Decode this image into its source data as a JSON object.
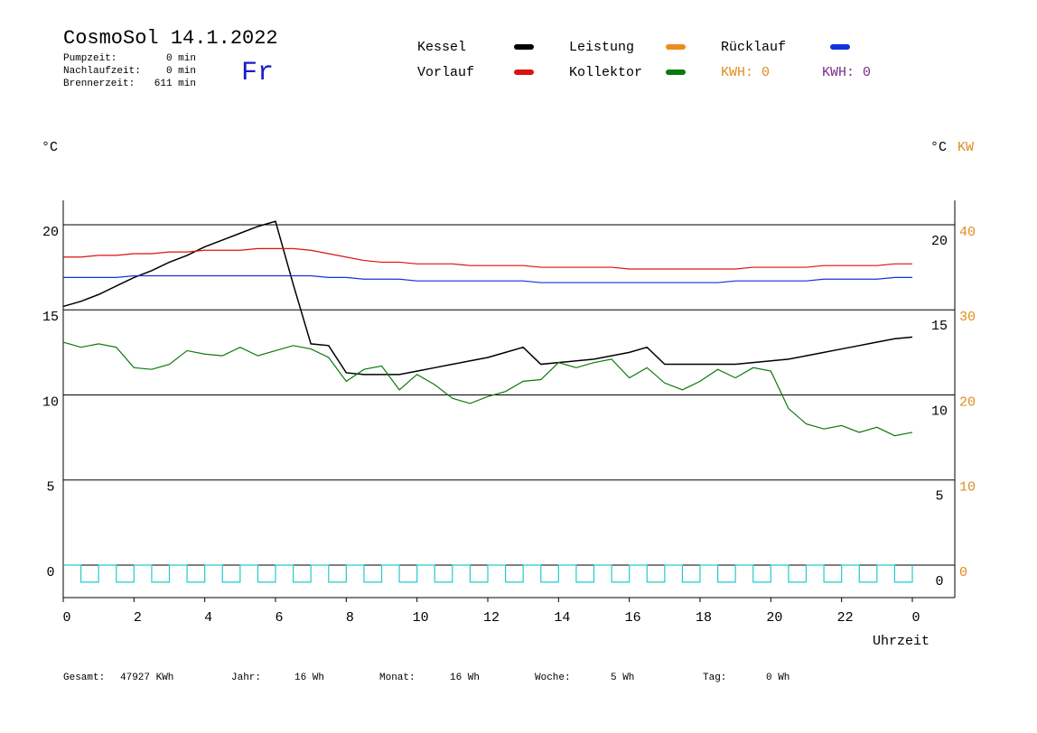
{
  "header": {
    "title": "CosmoSol 14.1.2022",
    "weekday": "Fr",
    "info": [
      [
        "Pumpzeit:",
        "0 min"
      ],
      [
        "Nachlaufzeit:",
        "0 min"
      ],
      [
        "Brennerzeit:",
        "611 min"
      ]
    ],
    "kwh": [
      {
        "text": "KWH: 0",
        "color": "#e08a1e"
      },
      {
        "text": "KWH: 0",
        "color": "#7a2a8a"
      }
    ]
  },
  "chart_data": {
    "type": "line",
    "y_unit_left": "°C",
    "y_unit_right": "°C",
    "y2_unit": "KW",
    "xlabel": "Uhrzeit",
    "x": [
      0,
      0.5,
      1,
      1.5,
      2,
      2.5,
      3,
      3.5,
      4,
      4.5,
      5,
      5.5,
      6,
      6.5,
      7,
      7.5,
      8,
      8.5,
      9,
      9.5,
      10,
      10.5,
      11,
      11.5,
      12,
      12.5,
      13,
      13.5,
      14,
      14.5,
      15,
      15.5,
      16,
      16.5,
      17,
      17.5,
      18,
      18.5,
      19,
      19.5,
      20,
      20.5,
      21,
      21.5,
      22,
      22.5,
      23,
      23.5,
      24
    ],
    "xlim": [
      0,
      25.2
    ],
    "xticks": [
      0,
      2,
      4,
      6,
      8,
      10,
      12,
      14,
      16,
      18,
      20,
      22,
      {
        "value": 24,
        "label": "0"
      }
    ],
    "ylim": [
      -1.91,
      21.43
    ],
    "yticks": [
      0,
      5,
      10,
      15,
      20
    ],
    "y2lim": [
      -3.82,
      42.86
    ],
    "y2ticks": [
      0,
      10,
      20,
      30,
      40
    ],
    "y2color": "#e08a1e",
    "grid": true,
    "series": [
      {
        "name": "Kessel",
        "color": "#000000",
        "values": [
          15.2,
          15.5,
          15.9,
          16.4,
          16.9,
          17.3,
          17.8,
          18.2,
          18.7,
          19.1,
          19.5,
          19.9,
          20.2,
          16.5,
          13.0,
          12.9,
          11.3,
          11.2,
          11.2,
          11.2,
          11.4,
          11.6,
          11.8,
          12.0,
          12.2,
          12.5,
          12.8,
          11.8,
          11.9,
          12.0,
          12.1,
          12.3,
          12.5,
          12.8,
          11.8,
          11.8,
          11.8,
          11.8,
          11.8,
          11.9,
          12.0,
          12.1,
          12.3,
          12.5,
          12.7,
          12.9,
          13.1,
          13.3,
          13.4
        ]
      },
      {
        "name": "Kollektor",
        "color": "#0a7a0a",
        "values": [
          13.1,
          12.8,
          13.0,
          12.8,
          11.6,
          11.5,
          11.8,
          12.6,
          12.4,
          12.3,
          12.8,
          12.3,
          12.6,
          12.9,
          12.7,
          12.2,
          10.8,
          11.5,
          11.7,
          10.3,
          11.2,
          10.6,
          9.8,
          9.5,
          9.9,
          10.2,
          10.8,
          10.9,
          11.9,
          11.6,
          11.9,
          12.1,
          11.0,
          11.6,
          10.7,
          10.3,
          10.8,
          11.5,
          11.0,
          11.6,
          11.4,
          9.2,
          8.3,
          8.0,
          8.2,
          7.8,
          8.1,
          7.6,
          7.8
        ]
      },
      {
        "name": "Vorlauf",
        "color": "#dd1111",
        "values": [
          18.1,
          18.1,
          18.2,
          18.2,
          18.3,
          18.3,
          18.4,
          18.4,
          18.5,
          18.5,
          18.5,
          18.6,
          18.6,
          18.6,
          18.5,
          18.3,
          18.1,
          17.9,
          17.8,
          17.8,
          17.7,
          17.7,
          17.7,
          17.6,
          17.6,
          17.6,
          17.6,
          17.5,
          17.5,
          17.5,
          17.5,
          17.5,
          17.4,
          17.4,
          17.4,
          17.4,
          17.4,
          17.4,
          17.4,
          17.5,
          17.5,
          17.5,
          17.5,
          17.6,
          17.6,
          17.6,
          17.6,
          17.7,
          17.7
        ]
      },
      {
        "name": "Rücklauf",
        "color": "#1133dd",
        "values": [
          16.9,
          16.9,
          16.9,
          16.9,
          17.0,
          17.0,
          17.0,
          17.0,
          17.0,
          17.0,
          17.0,
          17.0,
          17.0,
          17.0,
          17.0,
          16.9,
          16.9,
          16.8,
          16.8,
          16.8,
          16.7,
          16.7,
          16.7,
          16.7,
          16.7,
          16.7,
          16.7,
          16.6,
          16.6,
          16.6,
          16.6,
          16.6,
          16.6,
          16.6,
          16.6,
          16.6,
          16.6,
          16.6,
          16.7,
          16.7,
          16.7,
          16.7,
          16.7,
          16.8,
          16.8,
          16.8,
          16.8,
          16.9,
          16.9
        ]
      },
      {
        "name": "Leistung",
        "color": "#f08a1e"
      },
      {
        "color": "#22cccc",
        "step": true,
        "values": [
          0,
          -1,
          0,
          -1,
          0,
          -1,
          0,
          -1,
          0,
          -1,
          0,
          -1,
          0,
          -1,
          0,
          -1,
          0,
          -1,
          0,
          -1,
          0,
          -1,
          0,
          -1,
          0,
          -1,
          0,
          -1,
          0,
          -1,
          0,
          -1,
          0,
          -1,
          0,
          -1,
          0,
          -1,
          0,
          -1,
          0,
          -1,
          0,
          -1,
          0,
          -1,
          0,
          -1,
          0
        ]
      }
    ],
    "legend_order": [
      0,
      2,
      4,
      1,
      3
    ]
  },
  "footer": [
    [
      "Gesamt:",
      "47927 KWh"
    ],
    [
      "Jahr:",
      "16 Wh"
    ],
    [
      "Monat:",
      "16 Wh"
    ],
    [
      "Woche:",
      "5 Wh"
    ],
    [
      "Tag:",
      "0 Wh"
    ]
  ]
}
